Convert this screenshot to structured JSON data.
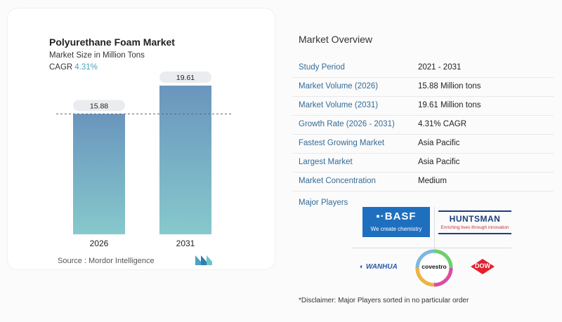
{
  "chart_data": {
    "type": "bar",
    "title": "Polyurethane Foam Market",
    "subtitle": "Market Size in Million Tons",
    "cagr_label": "CAGR",
    "cagr_value": "4.31%",
    "categories": [
      "2026",
      "2031"
    ],
    "values": [
      15.88,
      19.61
    ],
    "value_labels": [
      "15.88",
      "19.61"
    ],
    "ylim": [
      0,
      21
    ],
    "grid": false,
    "reference_line_at": 15.88,
    "bar_color_top": "#6a95bd",
    "bar_color_bottom": "#86c9cc"
  },
  "source": "Source : Mordor Intelligence",
  "overview": {
    "title": "Market Overview",
    "rows": [
      {
        "key": "Study Period",
        "value": "2021 - 2031"
      },
      {
        "key": "Market Volume (2026)",
        "value": "15.88 Million tons"
      },
      {
        "key": "Market Volume (2031)",
        "value": "19.61 Million tons"
      },
      {
        "key": "Growth Rate (2026 - 2031)",
        "value": "4.31% CAGR"
      },
      {
        "key": "Fastest Growing Market",
        "value": "Asia Pacific"
      },
      {
        "key": "Largest Market",
        "value": "Asia Pacific"
      },
      {
        "key": "Market Concentration",
        "value": "Medium"
      }
    ],
    "major_players_label": "Major Players",
    "disclaimer": "*Disclaimer: Major Players sorted in no particular order"
  },
  "players": {
    "basf_name": "▪·BASF",
    "basf_tagline": "We create chemistry",
    "huntsman_name": "HUNTSMAN",
    "huntsman_tagline": "Enriching lives through innovation",
    "wanhua_name": "WANHUA",
    "covestro_name": "covestro",
    "dow_name": "DOW"
  },
  "colors": {
    "accent": "#4ba3b8",
    "row_key": "#356b94",
    "basf_blue": "#1f6fbf",
    "dow_red": "#e4202e"
  }
}
